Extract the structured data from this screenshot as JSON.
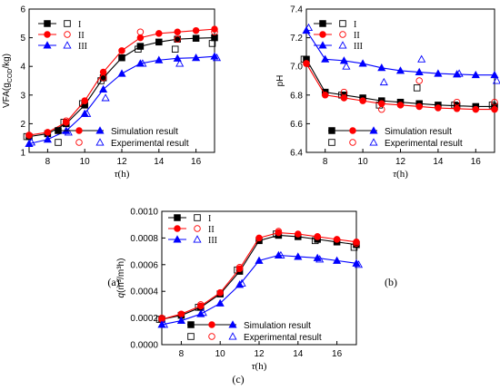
{
  "figure": {
    "panels": [
      "(a)",
      "(b)",
      "(c)"
    ]
  },
  "chart_data": [
    {
      "panel": "(a)",
      "type": "line",
      "xlabel": "τ(h)",
      "ylabel": "VFA(gCOD/kg)",
      "xlim": [
        7,
        17
      ],
      "ylim": [
        1,
        6
      ],
      "xticks": [
        8,
        10,
        12,
        14,
        16
      ],
      "yticks": [
        1,
        2,
        3,
        4,
        5,
        6
      ],
      "legend_top": [
        "I",
        "II",
        "III"
      ],
      "legend_bottom": [
        "Simulation result",
        "Experimental result"
      ],
      "simulation_x": [
        7,
        8,
        9,
        10,
        11,
        12,
        13,
        14,
        15,
        16,
        17
      ],
      "series": [
        {
          "name": "I",
          "color": "#000000",
          "marker": "square",
          "simulation": [
            1.55,
            1.65,
            2.0,
            2.65,
            3.6,
            4.3,
            4.7,
            4.85,
            4.95,
            4.98,
            5.0
          ],
          "experimental_x": [
            7,
            9,
            10,
            11,
            13,
            15,
            17
          ],
          "experimental": [
            1.55,
            2.05,
            2.7,
            3.5,
            4.6,
            4.6,
            4.8
          ]
        },
        {
          "name": "II",
          "color": "#ff0000",
          "marker": "circle",
          "simulation": [
            1.6,
            1.7,
            2.05,
            2.8,
            3.8,
            4.55,
            5.0,
            5.15,
            5.2,
            5.25,
            5.3
          ],
          "experimental_x": [
            7,
            9,
            10,
            11,
            13,
            15,
            17
          ],
          "experimental": [
            1.6,
            2.1,
            2.8,
            3.6,
            5.2,
            4.95,
            5.2
          ]
        },
        {
          "name": "III",
          "color": "#0000ff",
          "marker": "triangle",
          "simulation": [
            1.3,
            1.45,
            1.75,
            2.35,
            3.2,
            3.75,
            4.1,
            4.22,
            4.28,
            4.3,
            4.35
          ],
          "experimental_x": [
            7,
            9,
            10,
            11,
            13,
            15,
            17
          ],
          "experimental": [
            1.35,
            1.7,
            2.35,
            2.9,
            4.1,
            4.1,
            4.3
          ]
        }
      ]
    },
    {
      "panel": "(b)",
      "type": "line",
      "xlabel": "τ(h)",
      "ylabel": "pH",
      "xlim": [
        7,
        17
      ],
      "ylim": [
        6.4,
        7.4
      ],
      "xticks": [
        8,
        10,
        12,
        14,
        16
      ],
      "yticks": [
        6.4,
        6.6,
        6.8,
        7.0,
        7.2,
        7.4
      ],
      "legend_top": [
        "I",
        "II",
        "III"
      ],
      "legend_bottom": [
        "Simulation result",
        "Experimental result"
      ],
      "simulation_x": [
        7,
        8,
        9,
        10,
        11,
        12,
        13,
        14,
        15,
        16,
        17
      ],
      "series": [
        {
          "name": "I",
          "color": "#000000",
          "marker": "square",
          "simulation": [
            7.05,
            6.82,
            6.8,
            6.78,
            6.76,
            6.75,
            6.74,
            6.73,
            6.725,
            6.72,
            6.72
          ],
          "experimental_x": [
            7,
            9,
            11,
            13,
            15,
            17
          ],
          "experimental": [
            7.05,
            6.8,
            6.73,
            6.85,
            6.73,
            6.73
          ]
        },
        {
          "name": "II",
          "color": "#ff0000",
          "marker": "circle",
          "simulation": [
            7.02,
            6.8,
            6.78,
            6.76,
            6.74,
            6.73,
            6.72,
            6.71,
            6.705,
            6.7,
            6.7
          ],
          "experimental_x": [
            7,
            9,
            11,
            13,
            15,
            17
          ],
          "experimental": [
            7.02,
            6.82,
            6.7,
            6.9,
            6.75,
            6.75
          ]
        },
        {
          "name": "III",
          "color": "#0000ff",
          "marker": "triangle",
          "simulation": [
            7.25,
            7.05,
            7.04,
            7.02,
            6.99,
            6.97,
            6.96,
            6.95,
            6.945,
            6.94,
            6.94
          ],
          "experimental_x": [
            7,
            9,
            11,
            13,
            15,
            17
          ],
          "experimental": [
            7.27,
            7.0,
            6.89,
            7.05,
            6.95,
            6.9
          ]
        }
      ]
    },
    {
      "panel": "(c)",
      "type": "line",
      "xlabel": "τ(h)",
      "ylabel": "q(m³/m³h)",
      "xlim": [
        7,
        17
      ],
      "ylim": [
        0.0,
        0.001
      ],
      "xticks": [
        8,
        10,
        12,
        14,
        16
      ],
      "yticks": [
        "0.0000",
        "0.0002",
        "0.0004",
        "0.0006",
        "0.0008",
        "0.0010"
      ],
      "legend_top": [
        "I",
        "II",
        "III"
      ],
      "legend_bottom": [
        "Simulation result",
        "Experimental result"
      ],
      "simulation_x": [
        7,
        8,
        9,
        10,
        11,
        12,
        13,
        14,
        15,
        16,
        17
      ],
      "series": [
        {
          "name": "I",
          "color": "#000000",
          "marker": "square",
          "simulation": [
            0.00019,
            0.00022,
            0.00028,
            0.00038,
            0.00055,
            0.00078,
            0.00082,
            0.00081,
            0.00079,
            0.00077,
            0.00075
          ],
          "experimental_x": [
            7,
            9,
            11,
            13,
            15,
            17
          ],
          "experimental": [
            0.00019,
            0.00028,
            0.00056,
            0.00083,
            0.00078,
            0.00073
          ]
        },
        {
          "name": "II",
          "color": "#ff0000",
          "marker": "circle",
          "simulation": [
            0.00019,
            0.00023,
            0.00029,
            0.00039,
            0.00057,
            0.0008,
            0.00084,
            0.00083,
            0.00081,
            0.00079,
            0.00077
          ],
          "experimental_x": [
            7,
            9,
            11,
            13,
            15,
            17
          ],
          "experimental": [
            0.0002,
            0.0003,
            0.00058,
            0.00085,
            0.00081,
            0.00076
          ]
        },
        {
          "name": "III",
          "color": "#0000ff",
          "marker": "triangle",
          "simulation": [
            0.00015,
            0.00018,
            0.00023,
            0.00031,
            0.00045,
            0.00063,
            0.00067,
            0.00066,
            0.00065,
            0.00063,
            0.00061
          ],
          "experimental_x": [
            7,
            9,
            11,
            13,
            15,
            17
          ],
          "experimental": [
            0.00015,
            0.00024,
            0.00046,
            0.00067,
            0.00064,
            0.0006
          ]
        }
      ]
    }
  ]
}
